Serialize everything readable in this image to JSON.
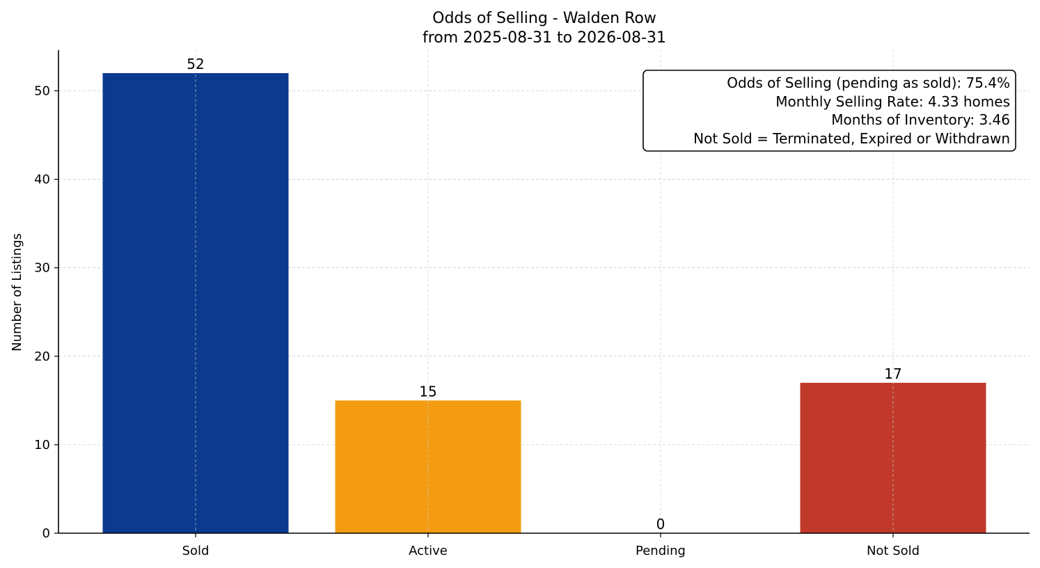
{
  "chart_data": {
    "type": "bar",
    "title": "Odds of Selling - Walden Row",
    "subtitle": "from 2025-08-31 to 2026-08-31",
    "xlabel": "",
    "ylabel": "Number of Listings",
    "categories": [
      "Sold",
      "Active",
      "Pending",
      "Not Sold"
    ],
    "values": [
      52,
      15,
      0,
      17
    ],
    "data_labels": [
      "52",
      "15",
      "0",
      "17"
    ],
    "colors": [
      "#0b3a8f",
      "#f39c12",
      "#2e8b57",
      "#c0392b"
    ],
    "ylim": [
      0,
      54.6
    ],
    "yticks": [
      0,
      10,
      20,
      30,
      40,
      50
    ],
    "grid": true,
    "annotation_box": {
      "placement": "top-right",
      "lines": [
        "Odds of Selling (pending as sold): 75.4%",
        "Monthly Selling Rate: 4.33 homes",
        "Months of Inventory: 3.46",
        "Not Sold = Terminated, Expired or Withdrawn"
      ]
    }
  }
}
